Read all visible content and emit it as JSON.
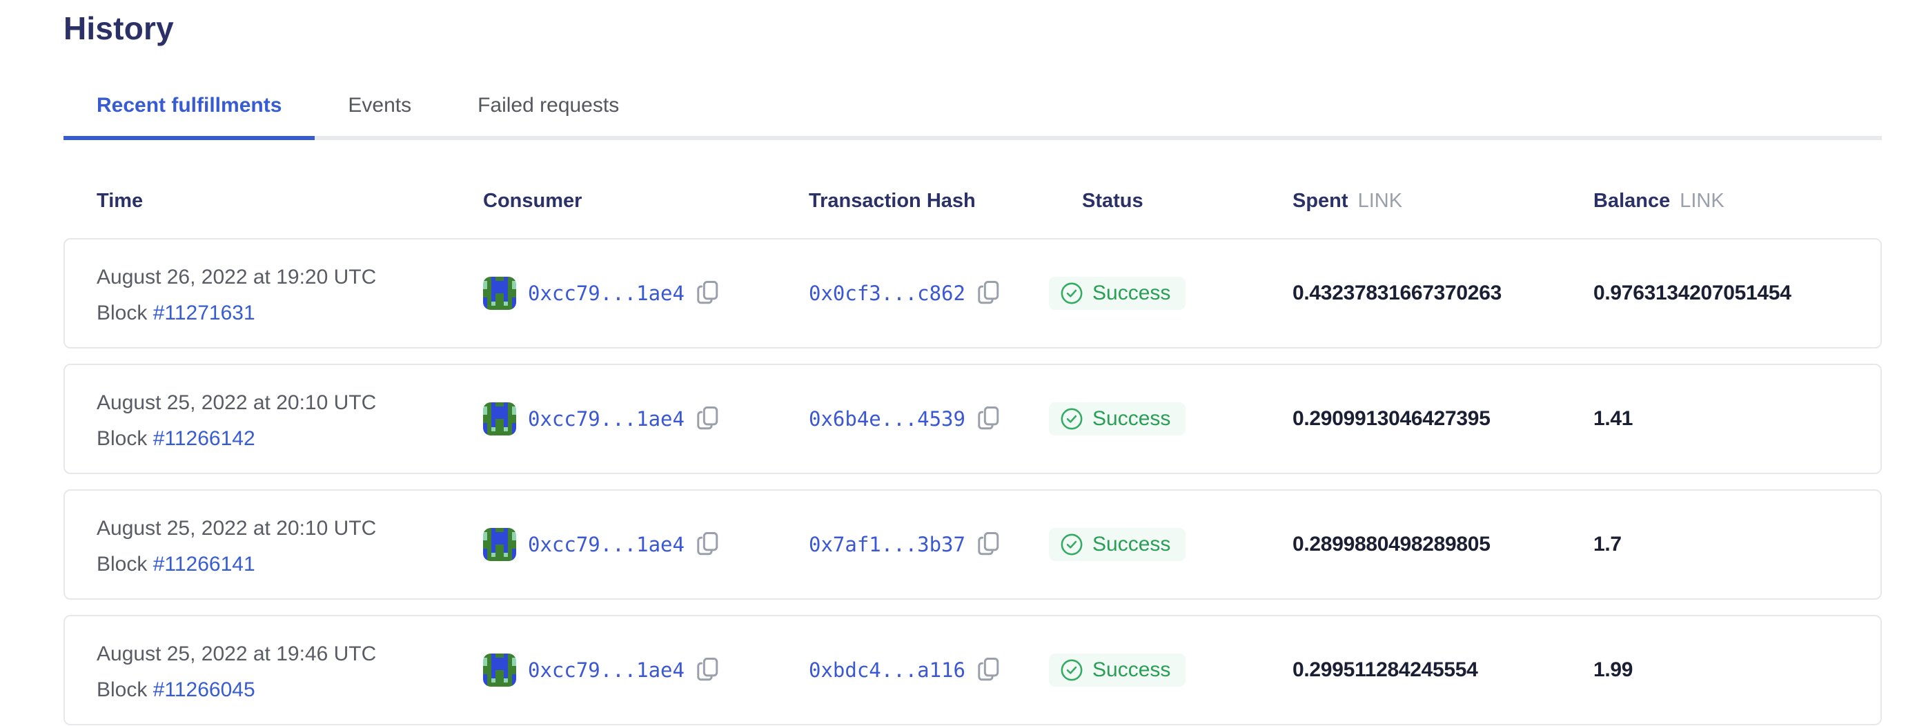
{
  "page": {
    "title": "History"
  },
  "tabs": [
    {
      "label": "Recent fulfillments",
      "active": true
    },
    {
      "label": "Events",
      "active": false
    },
    {
      "label": "Failed requests",
      "active": false
    }
  ],
  "table": {
    "headers": {
      "time": "Time",
      "consumer": "Consumer",
      "tx_hash": "Transaction Hash",
      "status": "Status",
      "spent": "Spent",
      "spent_unit": "LINK",
      "balance": "Balance",
      "balance_unit": "LINK"
    },
    "rows": [
      {
        "time": "August 26, 2022 at 19:20 UTC",
        "block_label": "Block",
        "block_number": "#11271631",
        "consumer_address": "0xcc79...1ae4",
        "tx_hash": "0x0cf3...c862",
        "status": "Success",
        "spent": "0.43237831667370263",
        "balance": "0.9763134207051454"
      },
      {
        "time": "August 25, 2022 at 20:10 UTC",
        "block_label": "Block",
        "block_number": "#11266142",
        "consumer_address": "0xcc79...1ae4",
        "tx_hash": "0x6b4e...4539",
        "status": "Success",
        "spent": "0.2909913046427395",
        "balance": "1.41"
      },
      {
        "time": "August 25, 2022 at 20:10 UTC",
        "block_label": "Block",
        "block_number": "#11266141",
        "consumer_address": "0xcc79...1ae4",
        "tx_hash": "0x7af1...3b37",
        "status": "Success",
        "spent": "0.2899880498289805",
        "balance": "1.7"
      },
      {
        "time": "August 25, 2022 at 19:46 UTC",
        "block_label": "Block",
        "block_number": "#11266045",
        "consumer_address": "0xcc79...1ae4",
        "tx_hash": "0xbdc4...a116",
        "status": "Success",
        "spent": "0.299511284245554",
        "balance": "1.99"
      }
    ]
  },
  "icons": {
    "copy": "copy-icon",
    "status_success": "check-circle-icon",
    "consumer_avatar": "blockie-identicon"
  },
  "colors": {
    "heading_navy": "#2b3166",
    "accent_blue": "#375bd2",
    "link_blue": "#3a57d6",
    "success_green": "#299e56",
    "success_bg": "#f2faf5",
    "muted_gray": "#595c64",
    "unit_gray": "#9aa0ab",
    "card_border": "#e7e8ec",
    "number_dark": "#1a1f33"
  },
  "blockie": {
    "colors": {
      "G": "#3c8030",
      "B": "#2e49d8",
      "T": "#8fd4ad"
    },
    "pattern": [
      "GGBGGBGG",
      "TGBBBBGT",
      "TGBBBBGT",
      "GGBBBBGG",
      "GGBGGBGG",
      "BGBGGBGB",
      "BGTGGTGB",
      "BGGGGGGB"
    ]
  }
}
